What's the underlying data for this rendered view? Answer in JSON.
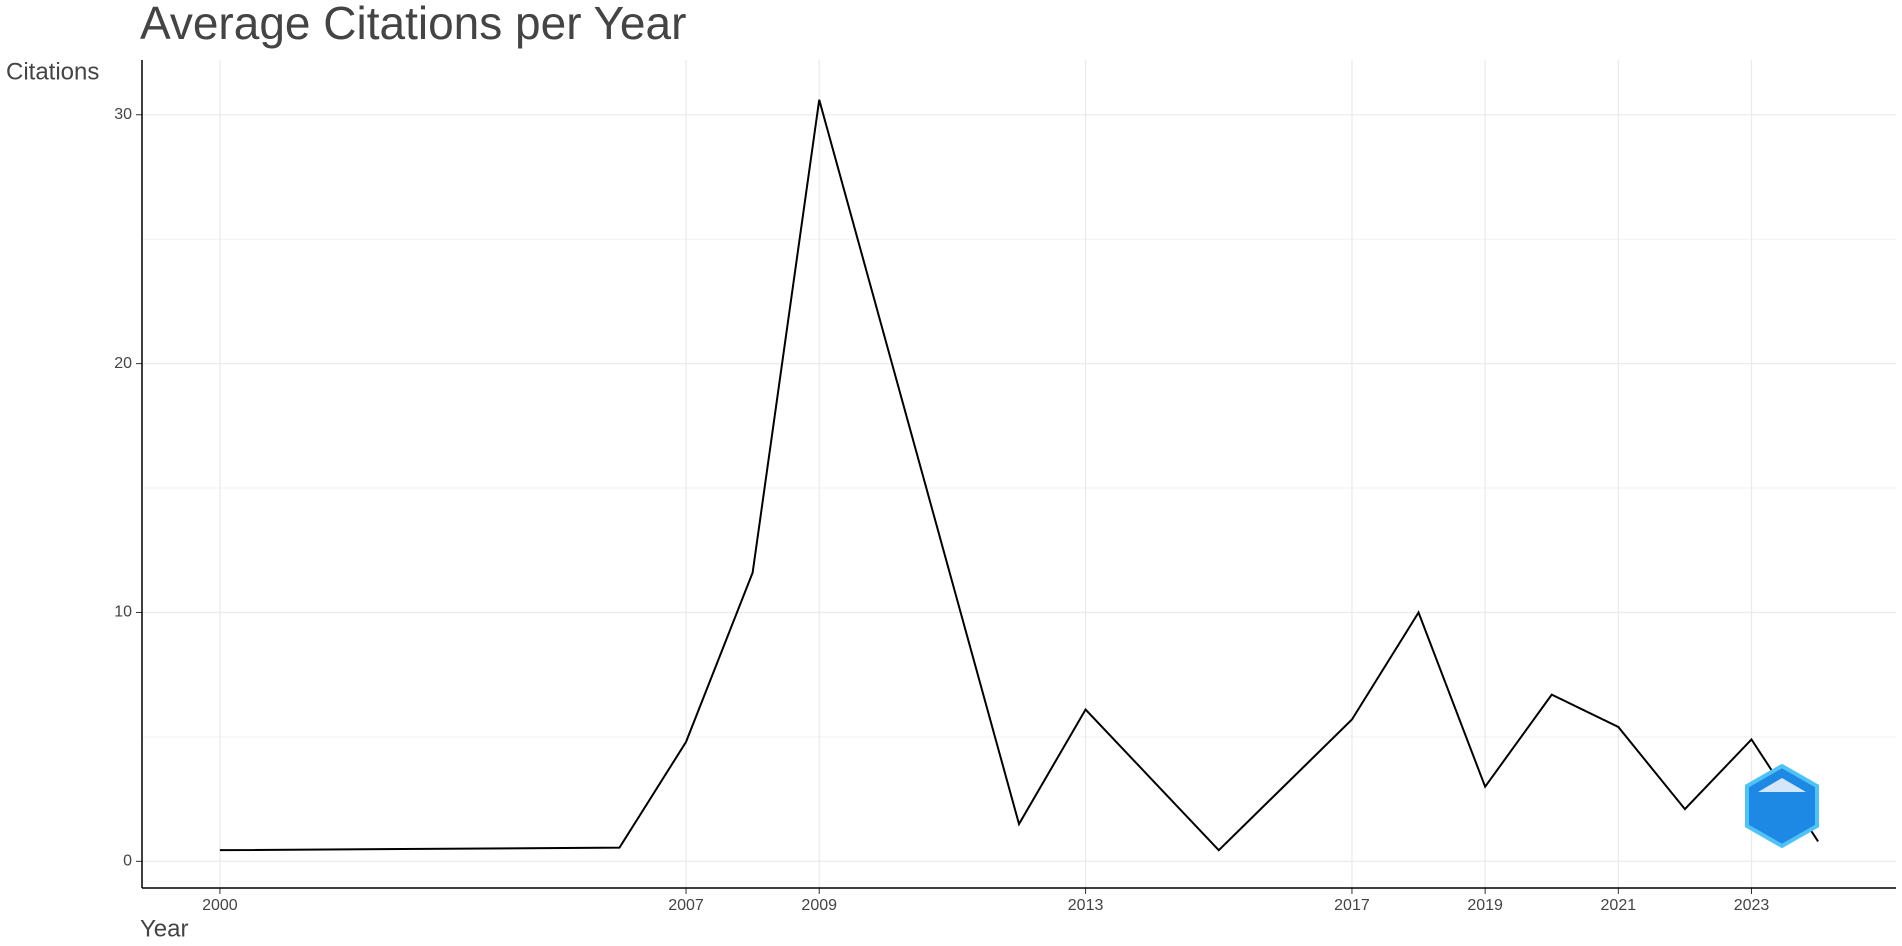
{
  "chart_data": {
    "type": "line",
    "title": "Average Citations per Year",
    "y_label": "Citations",
    "x_label": "Year",
    "x": [
      2000,
      2006,
      2007,
      2008,
      2009,
      2010,
      2011,
      2012,
      2013,
      2015,
      2017,
      2018,
      2019,
      2020,
      2021,
      2022,
      2023,
      2024
    ],
    "series": [
      {
        "name": "Citations",
        "color": "#000000",
        "values": [
          0.45,
          0.55,
          4.8,
          11.6,
          30.6,
          20.9,
          11.2,
          1.5,
          6.1,
          0.45,
          5.7,
          10.0,
          3.0,
          6.7,
          5.4,
          2.1,
          4.9,
          0.8
        ]
      }
    ],
    "xlim": [
      1998.83,
      2025.17
    ],
    "xticks": [
      2000,
      2007,
      2009,
      2013,
      2017,
      2019,
      2021,
      2023
    ],
    "ylim": [
      -1.07,
      32.2
    ],
    "yticks": [
      0,
      10,
      20,
      30
    ],
    "grid": true
  }
}
